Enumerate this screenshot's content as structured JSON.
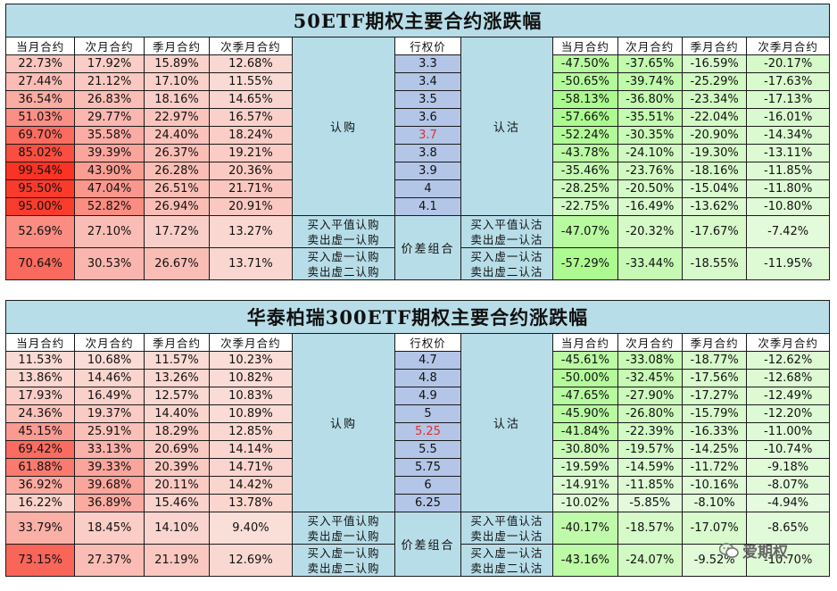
{
  "colors": {
    "title_bg": "#b7dde8",
    "strike_bg": "#b3c6e7",
    "atm_text": "#e03030",
    "call_heat": "red",
    "put_heat": "green"
  },
  "headers": {
    "call": [
      "当月合约",
      "次月合约",
      "季月合约",
      "次季月合约"
    ],
    "strike": "行权价",
    "put": [
      "当月合约",
      "次月合约",
      "季月合约",
      "次季月合约"
    ]
  },
  "panels": [
    {
      "title": "50ETF期权主要合约涨跌幅",
      "call_label": "认购",
      "put_label": "认沽",
      "spread_label": "价差组合",
      "rows": [
        {
          "call": [
            "22.73%",
            "17.92%",
            "15.89%",
            "12.68%"
          ],
          "strike": "3.3",
          "put": [
            "-47.50%",
            "-37.65%",
            "-16.59%",
            "-20.17%"
          ]
        },
        {
          "call": [
            "27.44%",
            "21.12%",
            "17.10%",
            "11.55%"
          ],
          "strike": "3.4",
          "put": [
            "-50.65%",
            "-39.74%",
            "-25.29%",
            "-17.63%"
          ]
        },
        {
          "call": [
            "36.54%",
            "26.83%",
            "18.16%",
            "14.65%"
          ],
          "strike": "3.5",
          "put": [
            "-58.13%",
            "-36.80%",
            "-23.34%",
            "-17.13%"
          ]
        },
        {
          "call": [
            "51.03%",
            "29.77%",
            "22.97%",
            "16.57%"
          ],
          "strike": "3.6",
          "put": [
            "-57.66%",
            "-35.51%",
            "-22.04%",
            "-16.01%"
          ]
        },
        {
          "call": [
            "69.70%",
            "35.58%",
            "24.40%",
            "18.24%"
          ],
          "strike": "3.7",
          "atm": true,
          "put": [
            "-52.24%",
            "-30.35%",
            "-20.90%",
            "-14.34%"
          ]
        },
        {
          "call": [
            "85.02%",
            "39.39%",
            "26.37%",
            "19.21%"
          ],
          "strike": "3.8",
          "put": [
            "-43.78%",
            "-24.10%",
            "-19.30%",
            "-13.11%"
          ]
        },
        {
          "call": [
            "99.54%",
            "43.90%",
            "26.28%",
            "20.36%"
          ],
          "strike": "3.9",
          "put": [
            "-35.46%",
            "-23.76%",
            "-18.16%",
            "-11.85%"
          ]
        },
        {
          "call": [
            "95.50%",
            "47.04%",
            "26.51%",
            "21.71%"
          ],
          "strike": "4",
          "put": [
            "-28.25%",
            "-20.50%",
            "-15.04%",
            "-11.80%"
          ]
        },
        {
          "call": [
            "95.00%",
            "52.82%",
            "26.94%",
            "20.91%"
          ],
          "strike": "4.1",
          "put": [
            "-22.75%",
            "-16.49%",
            "-13.62%",
            "-10.80%"
          ]
        }
      ],
      "combos": [
        {
          "call": [
            "52.69%",
            "27.10%",
            "17.72%",
            "13.27%"
          ],
          "call_label_1": "买入平值认购",
          "call_label_2": "卖出虚一认购",
          "put_label_1": "买入平值认沽",
          "put_label_2": "卖出虚一认沽",
          "put": [
            "-47.07%",
            "-20.32%",
            "-17.67%",
            "-7.42%"
          ]
        },
        {
          "call": [
            "70.64%",
            "30.53%",
            "26.67%",
            "13.71%"
          ],
          "call_label_1": "买入虚一认购",
          "call_label_2": "卖出虚二认购",
          "put_label_1": "买入虚一认沽",
          "put_label_2": "卖出虚二认沽",
          "put": [
            "-57.29%",
            "-33.44%",
            "-18.55%",
            "-11.95%"
          ]
        }
      ]
    },
    {
      "title": "华泰柏瑞300ETF期权主要合约涨跌幅",
      "call_label": "认购",
      "put_label": "认沽",
      "spread_label": "价差组合",
      "rows": [
        {
          "call": [
            "11.53%",
            "10.68%",
            "11.57%",
            "10.23%"
          ],
          "strike": "4.7",
          "put": [
            "-45.61%",
            "-33.08%",
            "-18.77%",
            "-12.62%"
          ]
        },
        {
          "call": [
            "13.86%",
            "14.46%",
            "13.26%",
            "10.82%"
          ],
          "strike": "4.8",
          "put": [
            "-50.00%",
            "-32.45%",
            "-17.56%",
            "-12.68%"
          ]
        },
        {
          "call": [
            "17.93%",
            "16.49%",
            "12.57%",
            "10.83%"
          ],
          "strike": "4.9",
          "put": [
            "-47.65%",
            "-27.90%",
            "-17.27%",
            "-12.49%"
          ]
        },
        {
          "call": [
            "24.36%",
            "19.37%",
            "14.40%",
            "10.89%"
          ],
          "strike": "5",
          "put": [
            "-45.90%",
            "-26.80%",
            "-15.79%",
            "-12.20%"
          ]
        },
        {
          "call": [
            "45.15%",
            "25.91%",
            "18.29%",
            "12.85%"
          ],
          "strike": "5.25",
          "atm": true,
          "put": [
            "-41.84%",
            "-22.39%",
            "-16.33%",
            "-11.00%"
          ]
        },
        {
          "call": [
            "69.42%",
            "33.13%",
            "20.69%",
            "14.14%"
          ],
          "strike": "5.5",
          "put": [
            "-30.80%",
            "-19.57%",
            "-14.25%",
            "-10.74%"
          ]
        },
        {
          "call": [
            "61.88%",
            "39.33%",
            "20.39%",
            "14.71%"
          ],
          "strike": "5.75",
          "put": [
            "-19.59%",
            "-14.59%",
            "-11.72%",
            "-9.18%"
          ]
        },
        {
          "call": [
            "36.92%",
            "39.68%",
            "20.11%",
            "14.42%"
          ],
          "strike": "6",
          "put": [
            "-14.91%",
            "-11.85%",
            "-10.16%",
            "-8.07%"
          ]
        },
        {
          "call": [
            "16.22%",
            "36.89%",
            "15.46%",
            "13.78%"
          ],
          "strike": "6.25",
          "put": [
            "-10.02%",
            "-5.85%",
            "-8.10%",
            "-4.94%"
          ]
        }
      ],
      "combos": [
        {
          "call": [
            "33.79%",
            "18.45%",
            "14.10%",
            "9.40%"
          ],
          "call_label_1": "买入平值认购",
          "call_label_2": "卖出虚一认购",
          "put_label_1": "买入平值认沽",
          "put_label_2": "卖出虚一认沽",
          "put": [
            "-40.17%",
            "-18.57%",
            "-17.07%",
            "-8.65%"
          ]
        },
        {
          "call": [
            "73.15%",
            "27.37%",
            "21.19%",
            "12.69%"
          ],
          "call_label_1": "买入虚一认购",
          "call_label_2": "卖出虚二认购",
          "put_label_1": "买入虚一认沽",
          "put_label_2": "卖出虚二认沽",
          "put": [
            "-43.16%",
            "-24.07%",
            "-9.52%",
            "-10.70%"
          ]
        }
      ]
    }
  ],
  "logo": {
    "text": "爱期权",
    "icon": "wechat-chat-icon"
  }
}
